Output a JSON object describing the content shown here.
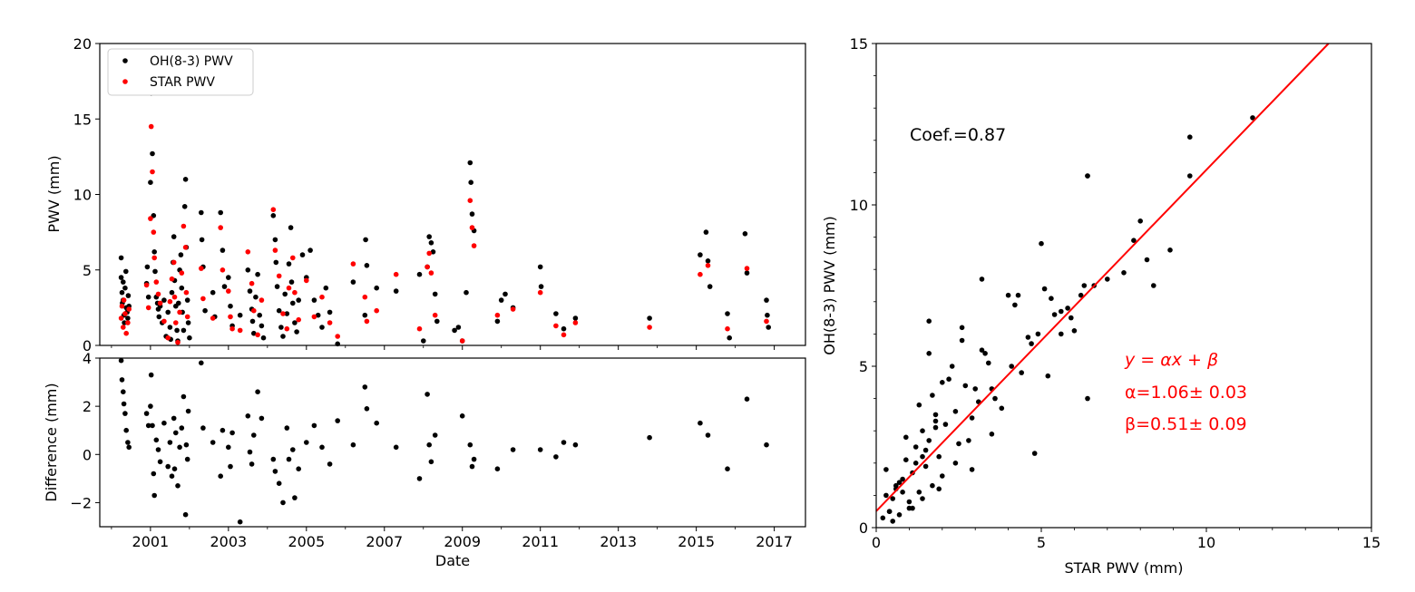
{
  "chart_data": [
    {
      "type": "scatter",
      "panel": "top-left",
      "xlabel": "",
      "ylabel": "PWV (mm)",
      "xlim": [
        1999.7,
        2017.8
      ],
      "ylim": [
        0,
        20
      ],
      "yticks": [
        0,
        5,
        10,
        15,
        20
      ],
      "legend": "top-left",
      "series": [
        {
          "name": "OH(8-3) PWV",
          "color": "#000000",
          "x": [
            2000.25,
            2000.25,
            2000.27,
            2000.28,
            2000.3,
            2000.3,
            2000.32,
            2000.33,
            2000.35,
            2000.37,
            2000.38,
            2000.4,
            2000.42,
            2000.43,
            2000.45,
            2000.9,
            2000.92,
            2000.95,
            2001.0,
            2001.02,
            2001.05,
            2001.08,
            2001.1,
            2001.12,
            2001.15,
            2001.18,
            2001.2,
            2001.22,
            2001.25,
            2001.3,
            2001.35,
            2001.4,
            2001.45,
            2001.5,
            2001.52,
            2001.55,
            2001.58,
            2001.6,
            2001.62,
            2001.65,
            2001.68,
            2001.7,
            2001.72,
            2001.75,
            2001.78,
            2001.8,
            2001.82,
            2001.85,
            2001.88,
            2001.9,
            2001.92,
            2001.95,
            2001.97,
            2002.0,
            2002.3,
            2002.32,
            2002.35,
            2002.4,
            2002.6,
            2002.65,
            2002.8,
            2002.85,
            2002.9,
            2003.0,
            2003.05,
            2003.1,
            2003.3,
            2003.5,
            2003.55,
            2003.6,
            2003.62,
            2003.65,
            2003.7,
            2003.75,
            2003.8,
            2003.85,
            2003.9,
            2004.15,
            2004.2,
            2004.22,
            2004.25,
            2004.3,
            2004.35,
            2004.4,
            2004.45,
            2004.5,
            2004.55,
            2004.6,
            2004.62,
            2004.65,
            2004.7,
            2004.75,
            2004.8,
            2004.9,
            2005.0,
            2005.1,
            2005.2,
            2005.3,
            2005.4,
            2005.5,
            2005.6,
            2005.8,
            2006.2,
            2006.5,
            2006.52,
            2006.55,
            2006.8,
            2007.3,
            2007.9,
            2008.0,
            2008.1,
            2008.15,
            2008.2,
            2008.25,
            2008.3,
            2008.35,
            2008.8,
            2008.9,
            2009.0,
            2009.1,
            2009.2,
            2009.22,
            2009.25,
            2009.3,
            2009.9,
            2010.0,
            2010.1,
            2010.3,
            2011.0,
            2011.02,
            2011.4,
            2011.6,
            2011.9,
            2013.8,
            2015.1,
            2015.25,
            2015.3,
            2015.35,
            2015.8,
            2015.85,
            2016.25,
            2016.3,
            2016.8,
            2016.82,
            2016.85
          ],
          "values": [
            5.8,
            4.5,
            3.5,
            2.8,
            4.2,
            3.0,
            2.0,
            1.5,
            3.8,
            4.9,
            2.5,
            2.2,
            1.8,
            3.3,
            2.6,
            4.1,
            5.2,
            3.2,
            10.8,
            16.7,
            12.7,
            8.6,
            6.2,
            4.9,
            3.2,
            2.8,
            2.4,
            1.9,
            2.6,
            1.5,
            3.0,
            0.6,
            2.2,
            1.2,
            0.4,
            3.5,
            5.5,
            7.2,
            4.3,
            2.6,
            1.0,
            0.3,
            2.8,
            5.0,
            6.0,
            3.8,
            2.2,
            1.0,
            9.2,
            11.0,
            6.5,
            3.0,
            1.5,
            0.5,
            8.8,
            7.0,
            5.2,
            2.3,
            3.5,
            1.9,
            8.8,
            6.3,
            3.9,
            4.5,
            2.6,
            1.3,
            2.0,
            5.0,
            3.6,
            2.4,
            1.6,
            0.8,
            3.2,
            4.7,
            2.0,
            1.3,
            0.5,
            8.6,
            7.0,
            5.5,
            3.9,
            2.3,
            1.2,
            0.6,
            3.4,
            2.1,
            5.4,
            7.8,
            4.2,
            2.8,
            1.5,
            0.9,
            3.0,
            6.0,
            4.5,
            6.3,
            3.0,
            2.0,
            1.2,
            3.8,
            2.2,
            0.1,
            4.2,
            2.0,
            7.0,
            5.3,
            3.8,
            3.6,
            4.7,
            0.3,
            5.2,
            7.2,
            6.8,
            6.2,
            3.4,
            1.6,
            1.0,
            1.2,
            0.3,
            3.5,
            12.1,
            10.8,
            8.7,
            7.6,
            1.6,
            3.0,
            3.4,
            2.5,
            5.2,
            3.9,
            2.1,
            1.1,
            1.8,
            1.8,
            6.0,
            7.5,
            5.6,
            3.9,
            2.1,
            0.5,
            7.4,
            4.8,
            3.0,
            2.0,
            1.2
          ],
          "note": "values are approximate readings"
        },
        {
          "name": "STAR PWV",
          "color": "#ff0000",
          "x": [
            2000.25,
            2000.27,
            2000.3,
            2000.32,
            2000.35,
            2000.38,
            2000.42,
            2000.45,
            2000.9,
            2000.95,
            2001.0,
            2001.02,
            2001.05,
            2001.08,
            2001.1,
            2001.15,
            2001.2,
            2001.25,
            2001.35,
            2001.45,
            2001.5,
            2001.55,
            2001.6,
            2001.62,
            2001.65,
            2001.7,
            2001.75,
            2001.8,
            2001.85,
            2001.9,
            2001.92,
            2001.95,
            2002.3,
            2002.35,
            2002.6,
            2002.8,
            2002.85,
            2003.0,
            2003.05,
            2003.1,
            2003.3,
            2003.5,
            2003.6,
            2003.65,
            2003.75,
            2003.85,
            2004.15,
            2004.2,
            2004.3,
            2004.4,
            2004.5,
            2004.55,
            2004.65,
            2004.7,
            2004.8,
            2005.0,
            2005.2,
            2005.4,
            2005.6,
            2005.8,
            2006.2,
            2006.5,
            2006.55,
            2006.8,
            2007.3,
            2007.9,
            2008.1,
            2008.15,
            2008.2,
            2008.3,
            2009.0,
            2009.2,
            2009.25,
            2009.3,
            2009.9,
            2010.3,
            2011.0,
            2011.4,
            2011.6,
            2011.9,
            2013.8,
            2015.1,
            2015.3,
            2015.8,
            2016.3,
            2016.8
          ],
          "values": [
            1.8,
            2.6,
            1.2,
            3.0,
            2.1,
            0.8,
            1.5,
            2.4,
            4.0,
            2.5,
            8.4,
            14.5,
            11.5,
            7.5,
            5.8,
            4.2,
            3.4,
            2.8,
            1.6,
            0.5,
            2.9,
            4.4,
            5.5,
            3.2,
            1.5,
            0.2,
            2.2,
            4.8,
            7.9,
            6.5,
            3.5,
            1.9,
            5.1,
            3.1,
            1.8,
            7.8,
            5.0,
            3.6,
            1.9,
            1.1,
            1.0,
            6.2,
            4.1,
            2.3,
            0.7,
            3.0,
            9.0,
            6.3,
            4.6,
            2.1,
            1.1,
            3.8,
            5.8,
            3.5,
            1.7,
            4.3,
            1.9,
            3.2,
            1.5,
            0.6,
            5.4,
            3.2,
            1.6,
            2.3,
            4.7,
            1.1,
            5.2,
            6.1,
            4.8,
            2.0,
            0.3,
            9.6,
            7.8,
            6.6,
            2.0,
            2.4,
            3.5,
            1.3,
            0.7,
            1.5,
            1.2,
            4.7,
            5.3,
            1.1,
            5.1,
            1.6
          ],
          "note": "values are approximate readings"
        }
      ]
    },
    {
      "type": "scatter",
      "panel": "bottom-left",
      "xlabel": "Date",
      "ylabel": "Difference (mm)",
      "xlim": [
        1999.7,
        2017.8
      ],
      "ylim": [
        -3,
        4
      ],
      "yticks": [
        -2,
        0,
        2,
        4
      ],
      "xticks": [
        2001,
        2003,
        2005,
        2007,
        2009,
        2011,
        2013,
        2015,
        2017
      ],
      "series": [
        {
          "name": "",
          "color": "#000000",
          "x": [
            2000.25,
            2000.27,
            2000.3,
            2000.32,
            2000.35,
            2000.38,
            2000.42,
            2000.45,
            2000.9,
            2000.95,
            2001.0,
            2001.02,
            2001.05,
            2001.08,
            2001.1,
            2001.15,
            2001.2,
            2001.25,
            2001.35,
            2001.45,
            2001.5,
            2001.55,
            2001.6,
            2001.62,
            2001.65,
            2001.7,
            2001.75,
            2001.8,
            2001.85,
            2001.9,
            2001.92,
            2001.95,
            2001.97,
            2002.3,
            2002.35,
            2002.6,
            2002.8,
            2002.85,
            2003.0,
            2003.05,
            2003.1,
            2003.3,
            2003.5,
            2003.55,
            2003.6,
            2003.65,
            2003.75,
            2003.85,
            2004.15,
            2004.2,
            2004.3,
            2004.4,
            2004.5,
            2004.55,
            2004.65,
            2004.7,
            2004.8,
            2005.0,
            2005.2,
            2005.4,
            2005.6,
            2005.8,
            2006.2,
            2006.5,
            2006.55,
            2006.8,
            2007.3,
            2007.9,
            2008.1,
            2008.15,
            2008.2,
            2008.3,
            2009.0,
            2009.2,
            2009.25,
            2009.3,
            2009.9,
            2010.3,
            2011.0,
            2011.4,
            2011.6,
            2011.9,
            2013.8,
            2015.1,
            2015.3,
            2015.8,
            2016.3,
            2016.8
          ],
          "values": [
            3.9,
            3.1,
            2.6,
            2.1,
            1.7,
            1.0,
            0.5,
            0.3,
            1.7,
            1.2,
            2.0,
            3.3,
            1.2,
            -0.8,
            -1.7,
            0.6,
            0.2,
            -0.3,
            1.3,
            -0.5,
            0.5,
            -0.9,
            1.5,
            -0.6,
            0.9,
            -1.3,
            0.3,
            1.1,
            2.4,
            -2.5,
            0.4,
            -0.2,
            1.8,
            3.8,
            1.1,
            0.5,
            -0.9,
            1.0,
            0.3,
            -0.5,
            0.9,
            -2.8,
            1.6,
            0.1,
            -0.4,
            0.8,
            2.6,
            1.5,
            -0.2,
            -0.7,
            -1.2,
            -2.0,
            1.1,
            -0.2,
            0.2,
            -1.8,
            -0.6,
            0.5,
            1.2,
            0.3,
            -0.4,
            1.4,
            0.4,
            2.8,
            1.9,
            1.3,
            0.3,
            -1.0,
            2.5,
            0.4,
            -0.3,
            0.8,
            1.6,
            0.4,
            -0.5,
            -0.2,
            -0.6,
            0.2,
            0.2,
            -0.1,
            0.5,
            0.4,
            0.7,
            1.3,
            0.8,
            -0.6,
            2.3,
            0.4
          ],
          "note": "values are approximate readings"
        }
      ]
    },
    {
      "type": "scatter",
      "panel": "right",
      "xlabel": "STAR PWV (mm)",
      "ylabel": "OH(8-3) PWV (mm)",
      "xlim": [
        0,
        15
      ],
      "ylim": [
        0,
        15
      ],
      "xticks": [
        0,
        5,
        10,
        15
      ],
      "yticks": [
        0,
        5,
        10,
        15
      ],
      "annotations": [
        "Coef.=0.87",
        "y = αx + β",
        "α=1.06± 0.03",
        "β=0.51± 0.09"
      ],
      "series": [
        {
          "name": "",
          "color": "#000000",
          "x": [
            0.2,
            0.3,
            0.4,
            0.5,
            0.6,
            0.7,
            0.8,
            0.9,
            1.0,
            1.1,
            1.2,
            1.3,
            1.4,
            1.5,
            1.6,
            1.7,
            1.8,
            1.9,
            2.0,
            0.3,
            0.5,
            0.7,
            0.9,
            1.1,
            1.3,
            1.5,
            1.7,
            1.9,
            2.1,
            2.3,
            2.5,
            2.7,
            2.9,
            3.1,
            3.3,
            3.5,
            0.4,
            0.8,
            1.2,
            1.6,
            2.0,
            2.4,
            2.8,
            3.2,
            3.6,
            4.0,
            4.4,
            4.8,
            5.2,
            5.6,
            6.0,
            6.4,
            1.0,
            1.4,
            1.8,
            2.2,
            2.6,
            3.0,
            3.4,
            3.8,
            4.2,
            4.6,
            5.0,
            5.4,
            5.8,
            6.2,
            6.6,
            7.0,
            7.5,
            7.8,
            8.0,
            8.2,
            8.4,
            8.9,
            9.5,
            9.5,
            11.4,
            6.4,
            6.4,
            4.3,
            4.9,
            5.1,
            5.6,
            1.6,
            2.6,
            3.2,
            0.6,
            1.4,
            1.8,
            2.4,
            2.9,
            3.5,
            4.1,
            4.7,
            5.3,
            5.9,
            6.3
          ],
          "values": [
            0.3,
            1.8,
            0.5,
            0.9,
            1.2,
            0.4,
            1.5,
            2.1,
            0.8,
            1.7,
            2.5,
            1.1,
            3.0,
            1.9,
            2.7,
            1.3,
            3.5,
            2.2,
            1.6,
            1.0,
            0.2,
            1.4,
            2.8,
            0.6,
            3.8,
            2.4,
            4.1,
            1.2,
            3.2,
            5.0,
            2.6,
            4.4,
            1.8,
            3.9,
            5.4,
            2.9,
            0.5,
            1.1,
            2.0,
            5.4,
            4.5,
            3.6,
            2.7,
            7.7,
            4.0,
            7.2,
            4.8,
            2.3,
            4.7,
            6.7,
            6.1,
            4.0,
            0.6,
            2.2,
            3.3,
            4.6,
            6.2,
            4.3,
            5.1,
            3.7,
            6.9,
            5.9,
            8.8,
            6.6,
            6.8,
            7.2,
            7.5,
            7.7,
            7.9,
            8.9,
            9.5,
            8.3,
            7.5,
            8.6,
            12.1,
            10.9,
            12.7,
            10.9,
            10.9,
            7.2,
            6.0,
            7.4,
            6.0,
            6.4,
            5.8,
            5.5,
            1.3,
            0.9,
            3.1,
            2.0,
            3.4,
            4.3,
            5.0,
            5.7,
            7.1,
            6.5,
            7.5
          ],
          "note": "values are approximate readings"
        },
        {
          "name": "",
          "type": "line",
          "color": "#ff0000",
          "x": [
            0,
            13.7
          ],
          "values": [
            0.51,
            15.0
          ]
        }
      ]
    }
  ]
}
